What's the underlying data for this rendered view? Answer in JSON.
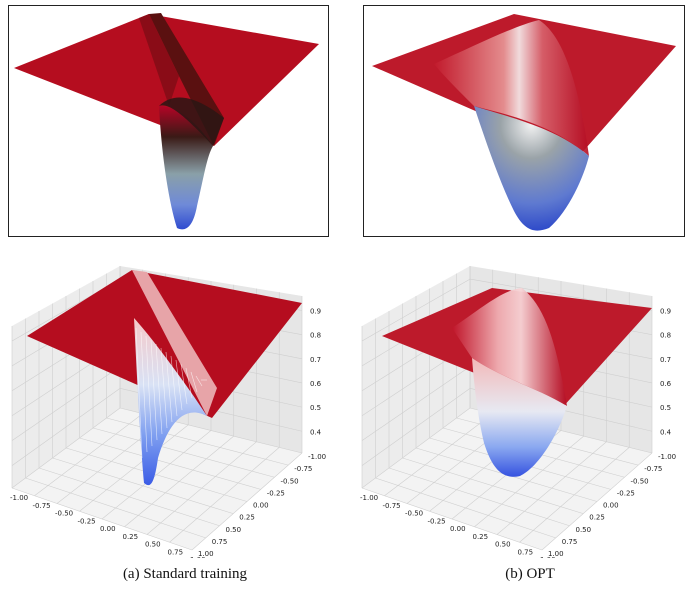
{
  "colors": {
    "high": "#b40426",
    "mid": "#f4dcdc",
    "low": "#3b4cc0"
  },
  "panels": [
    {
      "id": "surface-standard-smooth",
      "style": "smooth-3d-surface"
    },
    {
      "id": "surface-opt-smooth",
      "style": "smooth-3d-surface"
    },
    {
      "id": "surface-standard-axes",
      "style": "3d-surface-with-axes"
    },
    {
      "id": "surface-opt-axes",
      "style": "3d-surface-with-axes"
    }
  ],
  "axes": {
    "x_ticks": [
      "-1.00",
      "-0.75",
      "-0.50",
      "-0.25",
      "0.00",
      "0.25",
      "0.50",
      "0.75",
      "1.00"
    ],
    "y_ticks": [
      "1.00",
      "0.75",
      "0.50",
      "0.25",
      "0.00",
      "-0.25",
      "-0.50",
      "-0.75",
      "-1.00"
    ],
    "z_ticks": [
      "0.9",
      "0.8",
      "0.7",
      "0.6",
      "0.5",
      "0.4"
    ]
  },
  "captions": {
    "a": "(a) Standard training",
    "b": "(b) OPT"
  }
}
